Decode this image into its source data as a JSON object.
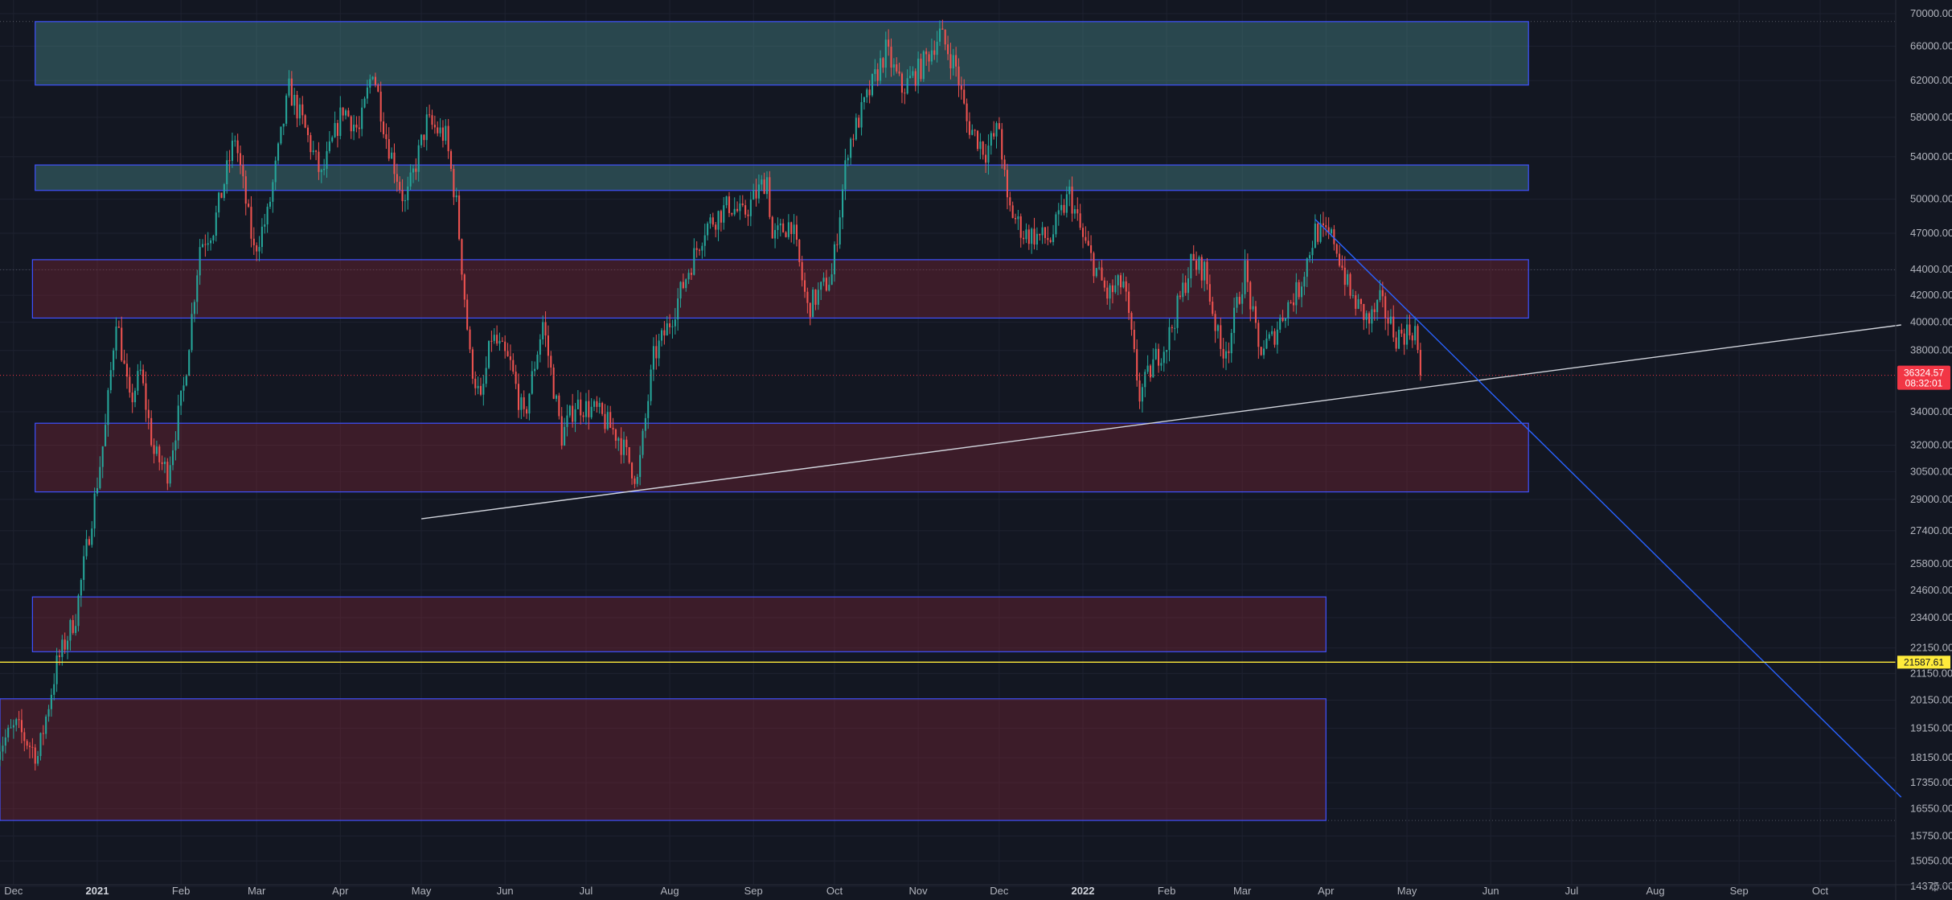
{
  "chart_data": {
    "type": "candlestick",
    "symbol_scale": "log",
    "y_ticks": [
      70000,
      66000,
      62000,
      58000,
      54000,
      50000,
      47000,
      44000,
      42000,
      40000,
      38000,
      34000,
      32000,
      30500,
      29000,
      27400,
      25800,
      24600,
      23400,
      22150,
      21150,
      20150,
      19150,
      18150,
      17350,
      16550,
      15750,
      15050,
      14375
    ],
    "y_tick_labels": [
      "70000.00",
      "66000.00",
      "62000.00",
      "58000.00",
      "54000.00",
      "50000.00",
      "47000.00",
      "44000.00",
      "42000.00",
      "40000.00",
      "38000.00",
      "34000.00",
      "32000.00",
      "30500.00",
      "29000.00",
      "27400.00",
      "25800.00",
      "24600.00",
      "23400.00",
      "22150.00",
      "21150.00",
      "20150.00",
      "19150.00",
      "18150.00",
      "17350.00",
      "16550.00",
      "15750.00",
      "15050.00",
      "14375.00"
    ],
    "x_ticks": [
      {
        "label": "Dec",
        "date": "2020-12-01",
        "bold": false
      },
      {
        "label": "2021",
        "date": "2021-01-01",
        "bold": true
      },
      {
        "label": "Feb",
        "date": "2021-02-01",
        "bold": false
      },
      {
        "label": "Mar",
        "date": "2021-03-01",
        "bold": false
      },
      {
        "label": "Apr",
        "date": "2021-04-01",
        "bold": false
      },
      {
        "label": "May",
        "date": "2021-05-01",
        "bold": false
      },
      {
        "label": "Jun",
        "date": "2021-06-01",
        "bold": false
      },
      {
        "label": "Jul",
        "date": "2021-07-01",
        "bold": false
      },
      {
        "label": "Aug",
        "date": "2021-08-01",
        "bold": false
      },
      {
        "label": "Sep",
        "date": "2021-09-01",
        "bold": false
      },
      {
        "label": "Oct",
        "date": "2021-10-01",
        "bold": false
      },
      {
        "label": "Nov",
        "date": "2021-11-01",
        "bold": false
      },
      {
        "label": "Dec",
        "date": "2021-12-01",
        "bold": false
      },
      {
        "label": "2022",
        "date": "2022-01-01",
        "bold": true
      },
      {
        "label": "Feb",
        "date": "2022-02-01",
        "bold": false
      },
      {
        "label": "Mar",
        "date": "2022-03-01",
        "bold": false
      },
      {
        "label": "Apr",
        "date": "2022-04-01",
        "bold": false
      },
      {
        "label": "May",
        "date": "2022-05-01",
        "bold": false
      },
      {
        "label": "Jun",
        "date": "2022-06-01",
        "bold": false
      },
      {
        "label": "Jul",
        "date": "2022-07-01",
        "bold": false
      },
      {
        "label": "Aug",
        "date": "2022-08-01",
        "bold": false
      },
      {
        "label": "Sep",
        "date": "2022-09-01",
        "bold": false
      },
      {
        "label": "Oct",
        "date": "2022-10-01",
        "bold": false
      }
    ],
    "price_path": [
      [
        "2020-11-25",
        18500
      ],
      [
        "2020-12-02",
        19200
      ],
      [
        "2020-12-10",
        18200
      ],
      [
        "2020-12-17",
        21500
      ],
      [
        "2020-12-24",
        23500
      ],
      [
        "2020-12-31",
        29000
      ],
      [
        "2021-01-04",
        33000
      ],
      [
        "2021-01-08",
        40500
      ],
      [
        "2021-01-13",
        34500
      ],
      [
        "2021-01-17",
        36500
      ],
      [
        "2021-01-22",
        31500
      ],
      [
        "2021-01-27",
        30500
      ],
      [
        "2021-02-02",
        35500
      ],
      [
        "2021-02-08",
        46000
      ],
      [
        "2021-02-13",
        47500
      ],
      [
        "2021-02-21",
        56000
      ],
      [
        "2021-02-28",
        45500
      ],
      [
        "2021-03-05",
        48500
      ],
      [
        "2021-03-13",
        61000
      ],
      [
        "2021-03-18",
        57500
      ],
      [
        "2021-03-25",
        52000
      ],
      [
        "2021-04-02",
        59000
      ],
      [
        "2021-04-08",
        56500
      ],
      [
        "2021-04-13",
        63500
      ],
      [
        "2021-04-18",
        56000
      ],
      [
        "2021-04-25",
        49500
      ],
      [
        "2021-05-03",
        57500
      ],
      [
        "2021-05-10",
        56000
      ],
      [
        "2021-05-14",
        49500
      ],
      [
        "2021-05-19",
        37500
      ],
      [
        "2021-05-23",
        34500
      ],
      [
        "2021-05-27",
        39000
      ],
      [
        "2021-06-03",
        37000
      ],
      [
        "2021-06-08",
        33500
      ],
      [
        "2021-06-15",
        40000
      ],
      [
        "2021-06-22",
        32500
      ],
      [
        "2021-06-27",
        34500
      ],
      [
        "2021-07-05",
        34000
      ],
      [
        "2021-07-13",
        32500
      ],
      [
        "2021-07-20",
        30000
      ],
      [
        "2021-07-26",
        37500
      ],
      [
        "2021-08-01",
        40000
      ],
      [
        "2021-08-08",
        44000
      ],
      [
        "2021-08-14",
        47500
      ],
      [
        "2021-08-23",
        49500
      ],
      [
        "2021-08-28",
        48500
      ],
      [
        "2021-09-06",
        52000
      ],
      [
        "2021-09-08",
        46500
      ],
      [
        "2021-09-15",
        48000
      ],
      [
        "2021-09-21",
        41000
      ],
      [
        "2021-09-30",
        43500
      ],
      [
        "2021-10-06",
        55000
      ],
      [
        "2021-10-15",
        61500
      ],
      [
        "2021-10-20",
        65500
      ],
      [
        "2021-10-26",
        61000
      ],
      [
        "2021-11-02",
        63500
      ],
      [
        "2021-11-09",
        67500
      ],
      [
        "2021-11-15",
        63500
      ],
      [
        "2021-11-19",
        57500
      ],
      [
        "2021-11-26",
        54500
      ],
      [
        "2021-12-01",
        57000
      ],
      [
        "2021-12-04",
        49500
      ],
      [
        "2021-12-10",
        47000
      ],
      [
        "2021-12-20",
        46500
      ],
      [
        "2021-12-27",
        50500
      ],
      [
        "2022-01-01",
        46500
      ],
      [
        "2022-01-10",
        42000
      ],
      [
        "2022-01-16",
        43000
      ],
      [
        "2022-01-22",
        35000
      ],
      [
        "2022-01-28",
        37500
      ],
      [
        "2022-02-01",
        38500
      ],
      [
        "2022-02-10",
        44500
      ],
      [
        "2022-02-15",
        44000
      ],
      [
        "2022-02-21",
        38000
      ],
      [
        "2022-02-24",
        38500
      ],
      [
        "2022-03-02",
        44000
      ],
      [
        "2022-03-07",
        38000
      ],
      [
        "2022-03-12",
        38800
      ],
      [
        "2022-03-17",
        41000
      ],
      [
        "2022-03-22",
        42500
      ],
      [
        "2022-03-28",
        47200
      ],
      [
        "2022-04-04",
        46500
      ],
      [
        "2022-04-10",
        42000
      ],
      [
        "2022-04-17",
        40000
      ],
      [
        "2022-04-21",
        41500
      ],
      [
        "2022-04-27",
        39000
      ],
      [
        "2022-05-04",
        39500
      ],
      [
        "2022-05-06",
        36300
      ]
    ],
    "zones": [
      {
        "kind": "supply-teal",
        "from": "2020-12-09",
        "to": "2022-06-15",
        "low": 61500,
        "high": 69000
      },
      {
        "kind": "supply-teal",
        "from": "2020-12-09",
        "to": "2022-06-15",
        "low": 50800,
        "high": 53200
      },
      {
        "kind": "demand-red",
        "from": "2020-12-08",
        "to": "2022-06-15",
        "low": 40300,
        "high": 44800
      },
      {
        "kind": "demand-red",
        "from": "2020-12-09",
        "to": "2022-06-15",
        "low": 29400,
        "high": 33300
      },
      {
        "kind": "demand-red",
        "from": "2020-12-08",
        "to": "2022-04-01",
        "low": 22000,
        "high": 24300
      },
      {
        "kind": "demand-red",
        "from": "2020-11-25",
        "to": "2022-04-01",
        "low": 16200,
        "high": 20200
      }
    ],
    "trendlines": [
      {
        "kind": "support",
        "color": "#d1d4dc",
        "from": [
          "2021-05-01",
          28000
        ],
        "to": [
          "2022-10-31",
          39800
        ]
      },
      {
        "kind": "resistance",
        "color": "#2962ff",
        "from": [
          "2022-03-28",
          48200
        ],
        "to": [
          "2022-10-31",
          16900
        ]
      }
    ],
    "horizontal_line": {
      "value": 21587.61,
      "color": "#ffeb3b",
      "label": "21587.61"
    },
    "current_price": {
      "value": 36324.57,
      "label": "36324.57",
      "countdown": "08:32:01",
      "color": "#f23645"
    }
  }
}
